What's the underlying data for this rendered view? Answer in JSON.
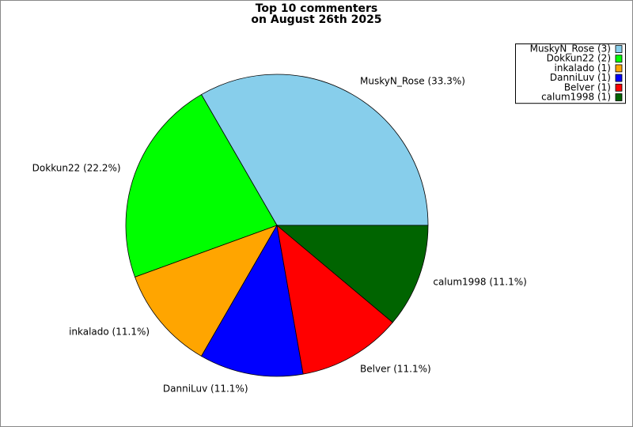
{
  "chart_data": {
    "type": "pie",
    "title": [
      "Top 10 commenters",
      "on August 26th 2025"
    ],
    "categories": [
      "MuskyN_Rose",
      "Dokkun22",
      "inkalado",
      "DanniLuv",
      "Belver",
      "calum1998"
    ],
    "values": [
      3,
      2,
      1,
      1,
      1,
      1
    ],
    "value_labels": [
      "MuskyN_Rose (33.3%)",
      "Dokkun22 (22.2%)",
      "inkalado (11.1%)",
      "DanniLuv (11.1%)",
      "Belver (11.1%)",
      "calum1998 (11.1%)"
    ],
    "legend_labels": [
      "MuskyN_Rose (3)",
      "Dokkun22 (2)",
      "inkalado (1)",
      "DanniLuv (1)",
      "Belver (1)",
      "calum1998 (1)"
    ],
    "colors": [
      "#87ceeb",
      "#00ff00",
      "#ffa500",
      "#0000ff",
      "#ff0000",
      "#006400"
    ],
    "legend": "upper right"
  }
}
